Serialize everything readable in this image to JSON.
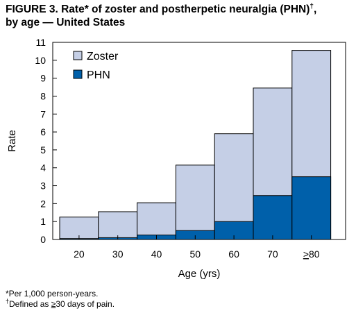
{
  "title": {
    "figure_label": "FIGURE 3.",
    "rest": "Rate* of zoster and postherpetic neuralgia (PHN)",
    "dagger": "†",
    "tail": ",",
    "line2": "by age — United States"
  },
  "chart_data": {
    "type": "bar",
    "stacked": "overlay",
    "categories": [
      "20",
      "30",
      "40",
      "50",
      "60",
      "70",
      "≥80"
    ],
    "series": [
      {
        "name": "Zoster",
        "values": [
          1.25,
          1.55,
          2.05,
          4.15,
          5.9,
          8.45,
          10.55
        ],
        "color": "#c5cfe6"
      },
      {
        "name": "PHN",
        "values": [
          0.05,
          0.1,
          0.25,
          0.5,
          1.0,
          2.45,
          3.5
        ],
        "color": "#0060aa"
      }
    ],
    "xlabel": "Age (yrs)",
    "ylabel": "Rate",
    "ylim": [
      0,
      11
    ],
    "yticks": [
      0,
      1,
      2,
      3,
      4,
      5,
      6,
      7,
      8,
      9,
      10,
      11
    ],
    "grid": false,
    "legend_position": "top-left",
    "bar_outline_color": "#000000"
  },
  "footnotes": {
    "star": "*Per 1,000 person-years.",
    "dagger_mark": "†",
    "dagger_prefix": "Defined as ",
    "dagger_ge": "≥",
    "dagger_rest": "30 days of pain."
  }
}
